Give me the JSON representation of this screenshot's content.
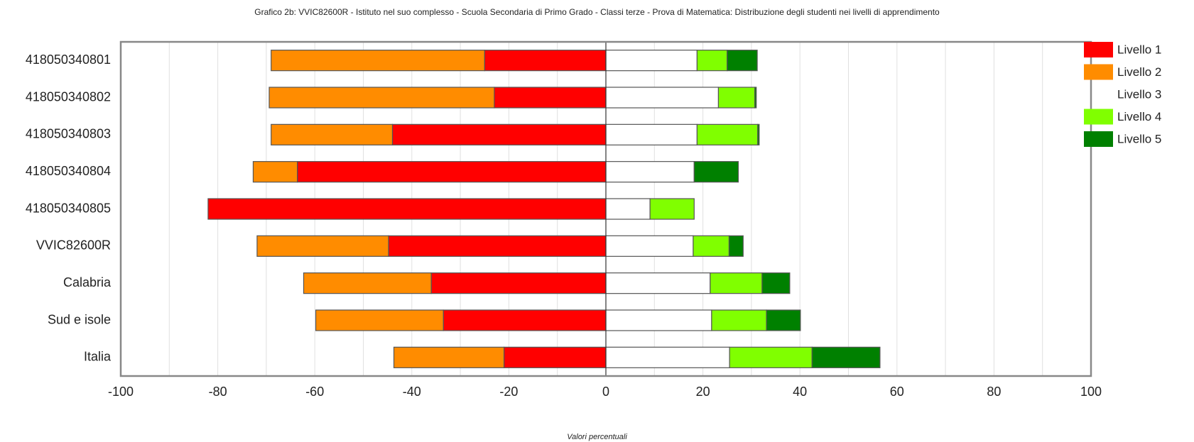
{
  "chart_data": {
    "type": "bar",
    "orientation": "horizontal",
    "stacked": "diverging",
    "title": "Grafico 2b: VVIC82600R - Istituto nel suo complesso - Scuola Secondaria di Primo Grado - Classi terze - Prova di Matematica: Distribuzione degli studenti nei livelli di apprendimento",
    "xlabel": "Valori percentuali",
    "ylabel": "",
    "xlim": [
      -100,
      100
    ],
    "xticks": [
      "-100",
      "-80",
      "-60",
      "-40",
      "-20",
      "0",
      "20",
      "40",
      "60",
      "80",
      "100"
    ],
    "grid": true,
    "legend_position": "right",
    "categories": [
      "418050340801",
      "418050340802",
      "418050340803",
      "418050340804",
      "418050340805",
      "VVIC82600R",
      "Calabria",
      "Sud e isole",
      "Italia"
    ],
    "series": [
      {
        "name": "Livello 1",
        "color": "#ff0000",
        "values": [
          -25.0,
          -23.0,
          -44.0,
          -63.6,
          -82.0,
          -44.8,
          -36.0,
          -33.5,
          -21.0
        ]
      },
      {
        "name": "Livello 2",
        "color": "#ff8c00",
        "values": [
          -44.0,
          -46.4,
          -25.0,
          -9.1,
          0.0,
          -27.1,
          -26.3,
          -26.3,
          -22.7
        ]
      },
      {
        "name": "Livello 3",
        "color": "#ffffff",
        "values": [
          18.8,
          23.2,
          18.8,
          18.2,
          9.1,
          18.0,
          21.5,
          21.8,
          25.5
        ]
      },
      {
        "name": "Livello 4",
        "color": "#80ff00",
        "values": [
          6.2,
          7.5,
          12.5,
          0.0,
          9.1,
          7.4,
          10.7,
          11.3,
          17.0
        ]
      },
      {
        "name": "Livello 5",
        "color": "#008000",
        "values": [
          6.2,
          0.3,
          0.3,
          9.1,
          0.0,
          2.9,
          5.7,
          7.0,
          14.0
        ]
      }
    ]
  }
}
